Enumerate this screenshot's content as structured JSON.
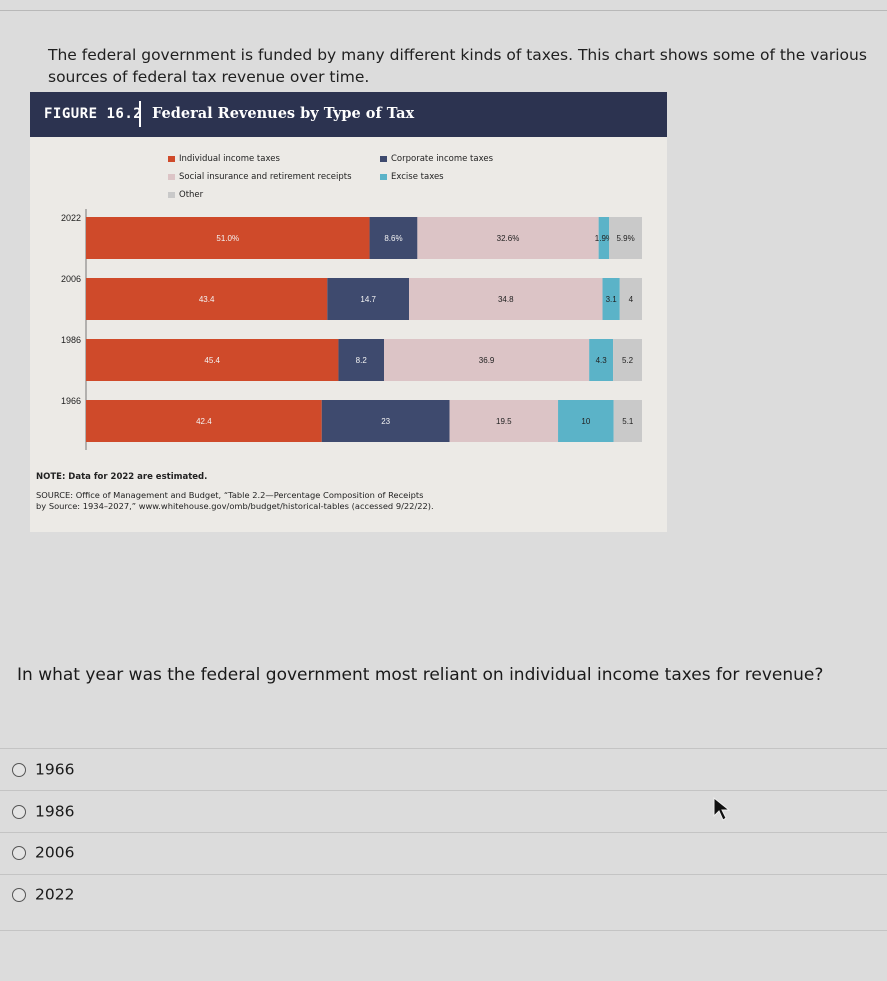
{
  "intro_text": "The federal government is funded by many different kinds of taxes. This chart shows some of the various sources of federal tax revenue over time.",
  "figure": {
    "number": "FIGURE 16.2",
    "title": "Federal Revenues by Type of Tax",
    "note": "NOTE: Data for 2022 are estimated.",
    "source_line1": "SOURCE: Office of Management and Budget, “Table 2.2—Percentage Composition of Receipts",
    "source_line2": "by Source: 1934–2027,” www.whitehouse.gov/omb/budget/historical-tables (accessed 9/22/22)."
  },
  "chart_data": {
    "type": "bar",
    "orientation": "horizontal-stacked",
    "title": "Federal Revenues by Type of Tax",
    "categories": [
      "2022",
      "2006",
      "1986",
      "1966"
    ],
    "series": [
      {
        "name": "Individual income taxes",
        "color": "#cf4a2a",
        "values": [
          51.0,
          43.4,
          45.4,
          42.4
        ],
        "labels": [
          "51.0%",
          "43.4",
          "45.4",
          "42.4"
        ]
      },
      {
        "name": "Corporate income taxes",
        "color": "#3e4a6e",
        "values": [
          8.6,
          14.7,
          8.2,
          23
        ],
        "labels": [
          "8.6%",
          "14.7",
          "8.2",
          "23"
        ]
      },
      {
        "name": "Social insurance and retirement receipts",
        "color": "#dcc4c6",
        "values": [
          32.6,
          34.8,
          36.9,
          19.5
        ],
        "labels": [
          "32.6%",
          "34.8",
          "36.9",
          "19.5"
        ]
      },
      {
        "name": "Excise taxes",
        "color": "#5bb3c8",
        "values": [
          1.9,
          3.1,
          4.3,
          10
        ],
        "labels": [
          "1.9%",
          "3.1",
          "4.3",
          "10"
        ]
      },
      {
        "name": "Other",
        "color": "#c9c9c9",
        "values": [
          5.9,
          4,
          5.2,
          5.1
        ],
        "labels": [
          "5.9%",
          "4",
          "5.2",
          "5.1"
        ]
      }
    ],
    "legend": [
      {
        "label": "Individual income taxes",
        "color": "#cf4a2a"
      },
      {
        "label": "Corporate income taxes",
        "color": "#3e4a6e"
      },
      {
        "label": "Social insurance and retirement receipts",
        "color": "#dcc4c6"
      },
      {
        "label": "Excise taxes",
        "color": "#5bb3c8"
      },
      {
        "label": "Other",
        "color": "#c9c9c9"
      }
    ]
  },
  "question": "In what year was the federal government most reliant on individual income taxes for revenue?",
  "options": [
    "1966",
    "1986",
    "2006",
    "2022"
  ]
}
